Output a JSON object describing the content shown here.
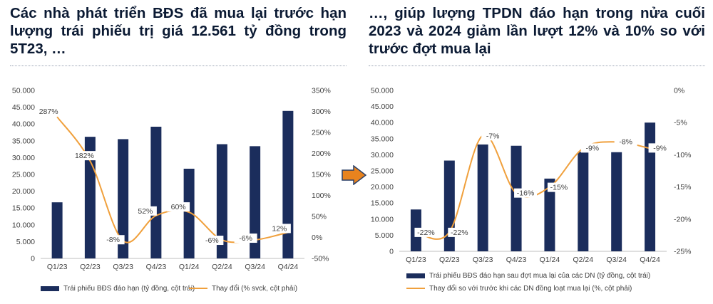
{
  "titles": {
    "left": "Các nhà phát triển BĐS đã mua lại trước hạn lượng trái phiếu trị giá 12.561 tỷ đồng trong 5T23, …",
    "right": "…, giúp lượng TPDN đáo hạn trong nửa cuối 2023 và 2024 giảm lần lượt 12% và 10% so với trước đợt mua lại"
  },
  "colors": {
    "bar": "#1b2d5c",
    "line": "#f0a03c",
    "arrow": "#e8831e",
    "title": "#0b1a33"
  },
  "arrow_icon": "right-arrow-icon",
  "chart_data": [
    {
      "type": "bar",
      "categories": [
        "Q1/23",
        "Q2/23",
        "Q3/23",
        "Q4/23",
        "Q1/24",
        "Q2/24",
        "Q3/24",
        "Q4/24"
      ],
      "y_ticks": [
        "0",
        "5.000",
        "10.000",
        "15.000",
        "20.000",
        "25.000",
        "30.000",
        "35.000",
        "40.000",
        "45.000",
        "50.000"
      ],
      "y2_ticks": [
        "-50%",
        "0%",
        "50%",
        "100%",
        "150%",
        "200%",
        "250%",
        "300%",
        "350%"
      ],
      "ylim": [
        0,
        50000
      ],
      "y2lim": [
        -50,
        350
      ],
      "series": [
        {
          "name": "Trái phiếu BĐS đáo hạn (tỷ đồng, cột trái)",
          "kind": "bar",
          "axis": "left",
          "values": [
            16700,
            36200,
            35500,
            39200,
            26700,
            34000,
            33400,
            43900
          ]
        },
        {
          "name": "Thay đổi (% svck, cột phải)",
          "kind": "line",
          "axis": "right",
          "values": [
            287,
            182,
            -8,
            52,
            60,
            -6,
            -6,
            12
          ]
        }
      ],
      "data_labels": [
        "287%",
        "182%",
        "-8%",
        "52%",
        "60%",
        "-6%",
        "-6%",
        "12%"
      ],
      "grid": false,
      "legend": "bottom"
    },
    {
      "type": "bar",
      "categories": [
        "Q1/23",
        "Q2/23",
        "Q3/23",
        "Q4/23",
        "Q1/24",
        "Q2/24",
        "Q3/24",
        "Q4/24"
      ],
      "y_ticks": [
        "0",
        "5.000",
        "10.000",
        "15.000",
        "20.000",
        "25.000",
        "30.000",
        "35.000",
        "40.000",
        "45.000",
        "50.000"
      ],
      "y2_ticks": [
        "-25%",
        "-20%",
        "-15%",
        "-10%",
        "-5%",
        "0%"
      ],
      "ylim": [
        0,
        50000
      ],
      "y2lim": [
        -25,
        0
      ],
      "series": [
        {
          "name": "Trái phiếu BĐS đáo hạn sau đợt mua lại của các DN (tỷ đồng, cột trái)",
          "kind": "bar",
          "axis": "left",
          "values": [
            13000,
            28200,
            33200,
            32800,
            22600,
            30900,
            30800,
            40000
          ]
        },
        {
          "name": "Thay đổi so với trước khi các DN đồng loạt mua lại (%, cột phải)",
          "kind": "line",
          "axis": "right",
          "values": [
            -22,
            -22,
            -7,
            -16,
            -15,
            -9,
            -8,
            -9
          ]
        }
      ],
      "data_labels": [
        "-22%",
        "-22%",
        "-7%",
        "-16%",
        "-15%",
        "-9%",
        "-8%",
        "-9%"
      ],
      "grid": false,
      "legend": "bottom"
    }
  ]
}
